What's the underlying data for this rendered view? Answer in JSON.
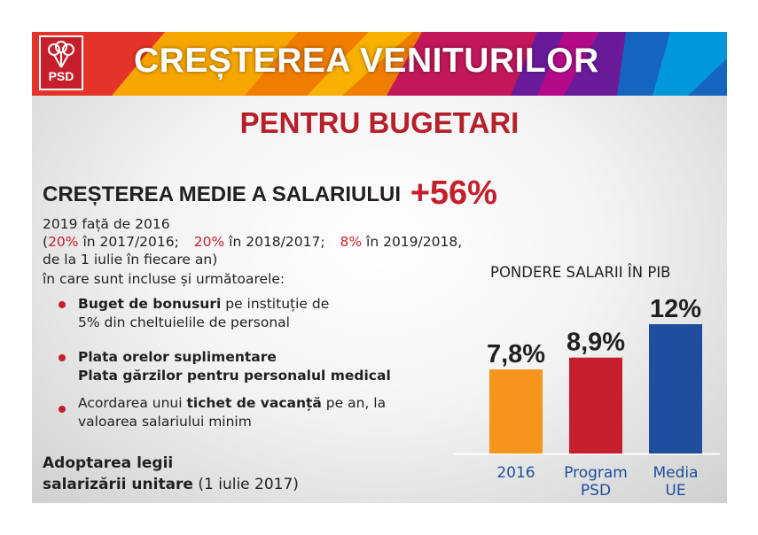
{
  "banner": {
    "logo_text": "PSD",
    "title": "CREȘTEREA VENITURILOR",
    "colors": [
      "#e6332a",
      "#f7a600",
      "#c2185b",
      "#6a1b9a",
      "#1565c0",
      "#00a0e0"
    ]
  },
  "subtitle": "PENTRU BUGETARI",
  "headline": {
    "text": "CREȘTEREA MEDIE A SALARIULUI",
    "value": "+56%"
  },
  "intro": {
    "line1": "2019 față de 2016",
    "open_paren": "(",
    "p1": "20%",
    "p1_label": " în 2017/2016;",
    "p2": "20%",
    "p2_label": " în 2018/2017;",
    "p3": "8%",
    "p3_label": " în 2019/2018,",
    "line3": "de la 1 iulie în fiecare an)",
    "line4": "în care sunt incluse și următoarele:"
  },
  "bullets": [
    {
      "bold": "Buget de bonusuri",
      "text": " pe instituție de",
      "line2": "5% din cheltuielile de personal"
    },
    {
      "bold": "Plata orelor suplimentare",
      "line2_bold": "Plata gărzilor pentru personalul medical"
    },
    {
      "pre": "Acordarea unui ",
      "bold": "tichet de vacanță",
      "text": " pe an, la",
      "line2": "valoarea salariului minim"
    }
  ],
  "adoption": {
    "bold1": "Adoptarea legii",
    "bold2": "salarizării unitare",
    "rest": " (1 iulie 2017)"
  },
  "chart_data": {
    "type": "bar",
    "title": "PONDERE SALARII ÎN PIB",
    "categories": [
      [
        "2016"
      ],
      [
        "Program",
        "PSD"
      ],
      [
        "Media",
        "UE"
      ]
    ],
    "values": [
      7.8,
      8.9,
      12
    ],
    "labels": [
      "7,8%",
      "8,9%",
      "12%"
    ],
    "colors": [
      "#f7941d",
      "#c61f2c",
      "#1f4e9c"
    ],
    "category_color": "#1f4e9c",
    "ylim": [
      0,
      12
    ]
  }
}
